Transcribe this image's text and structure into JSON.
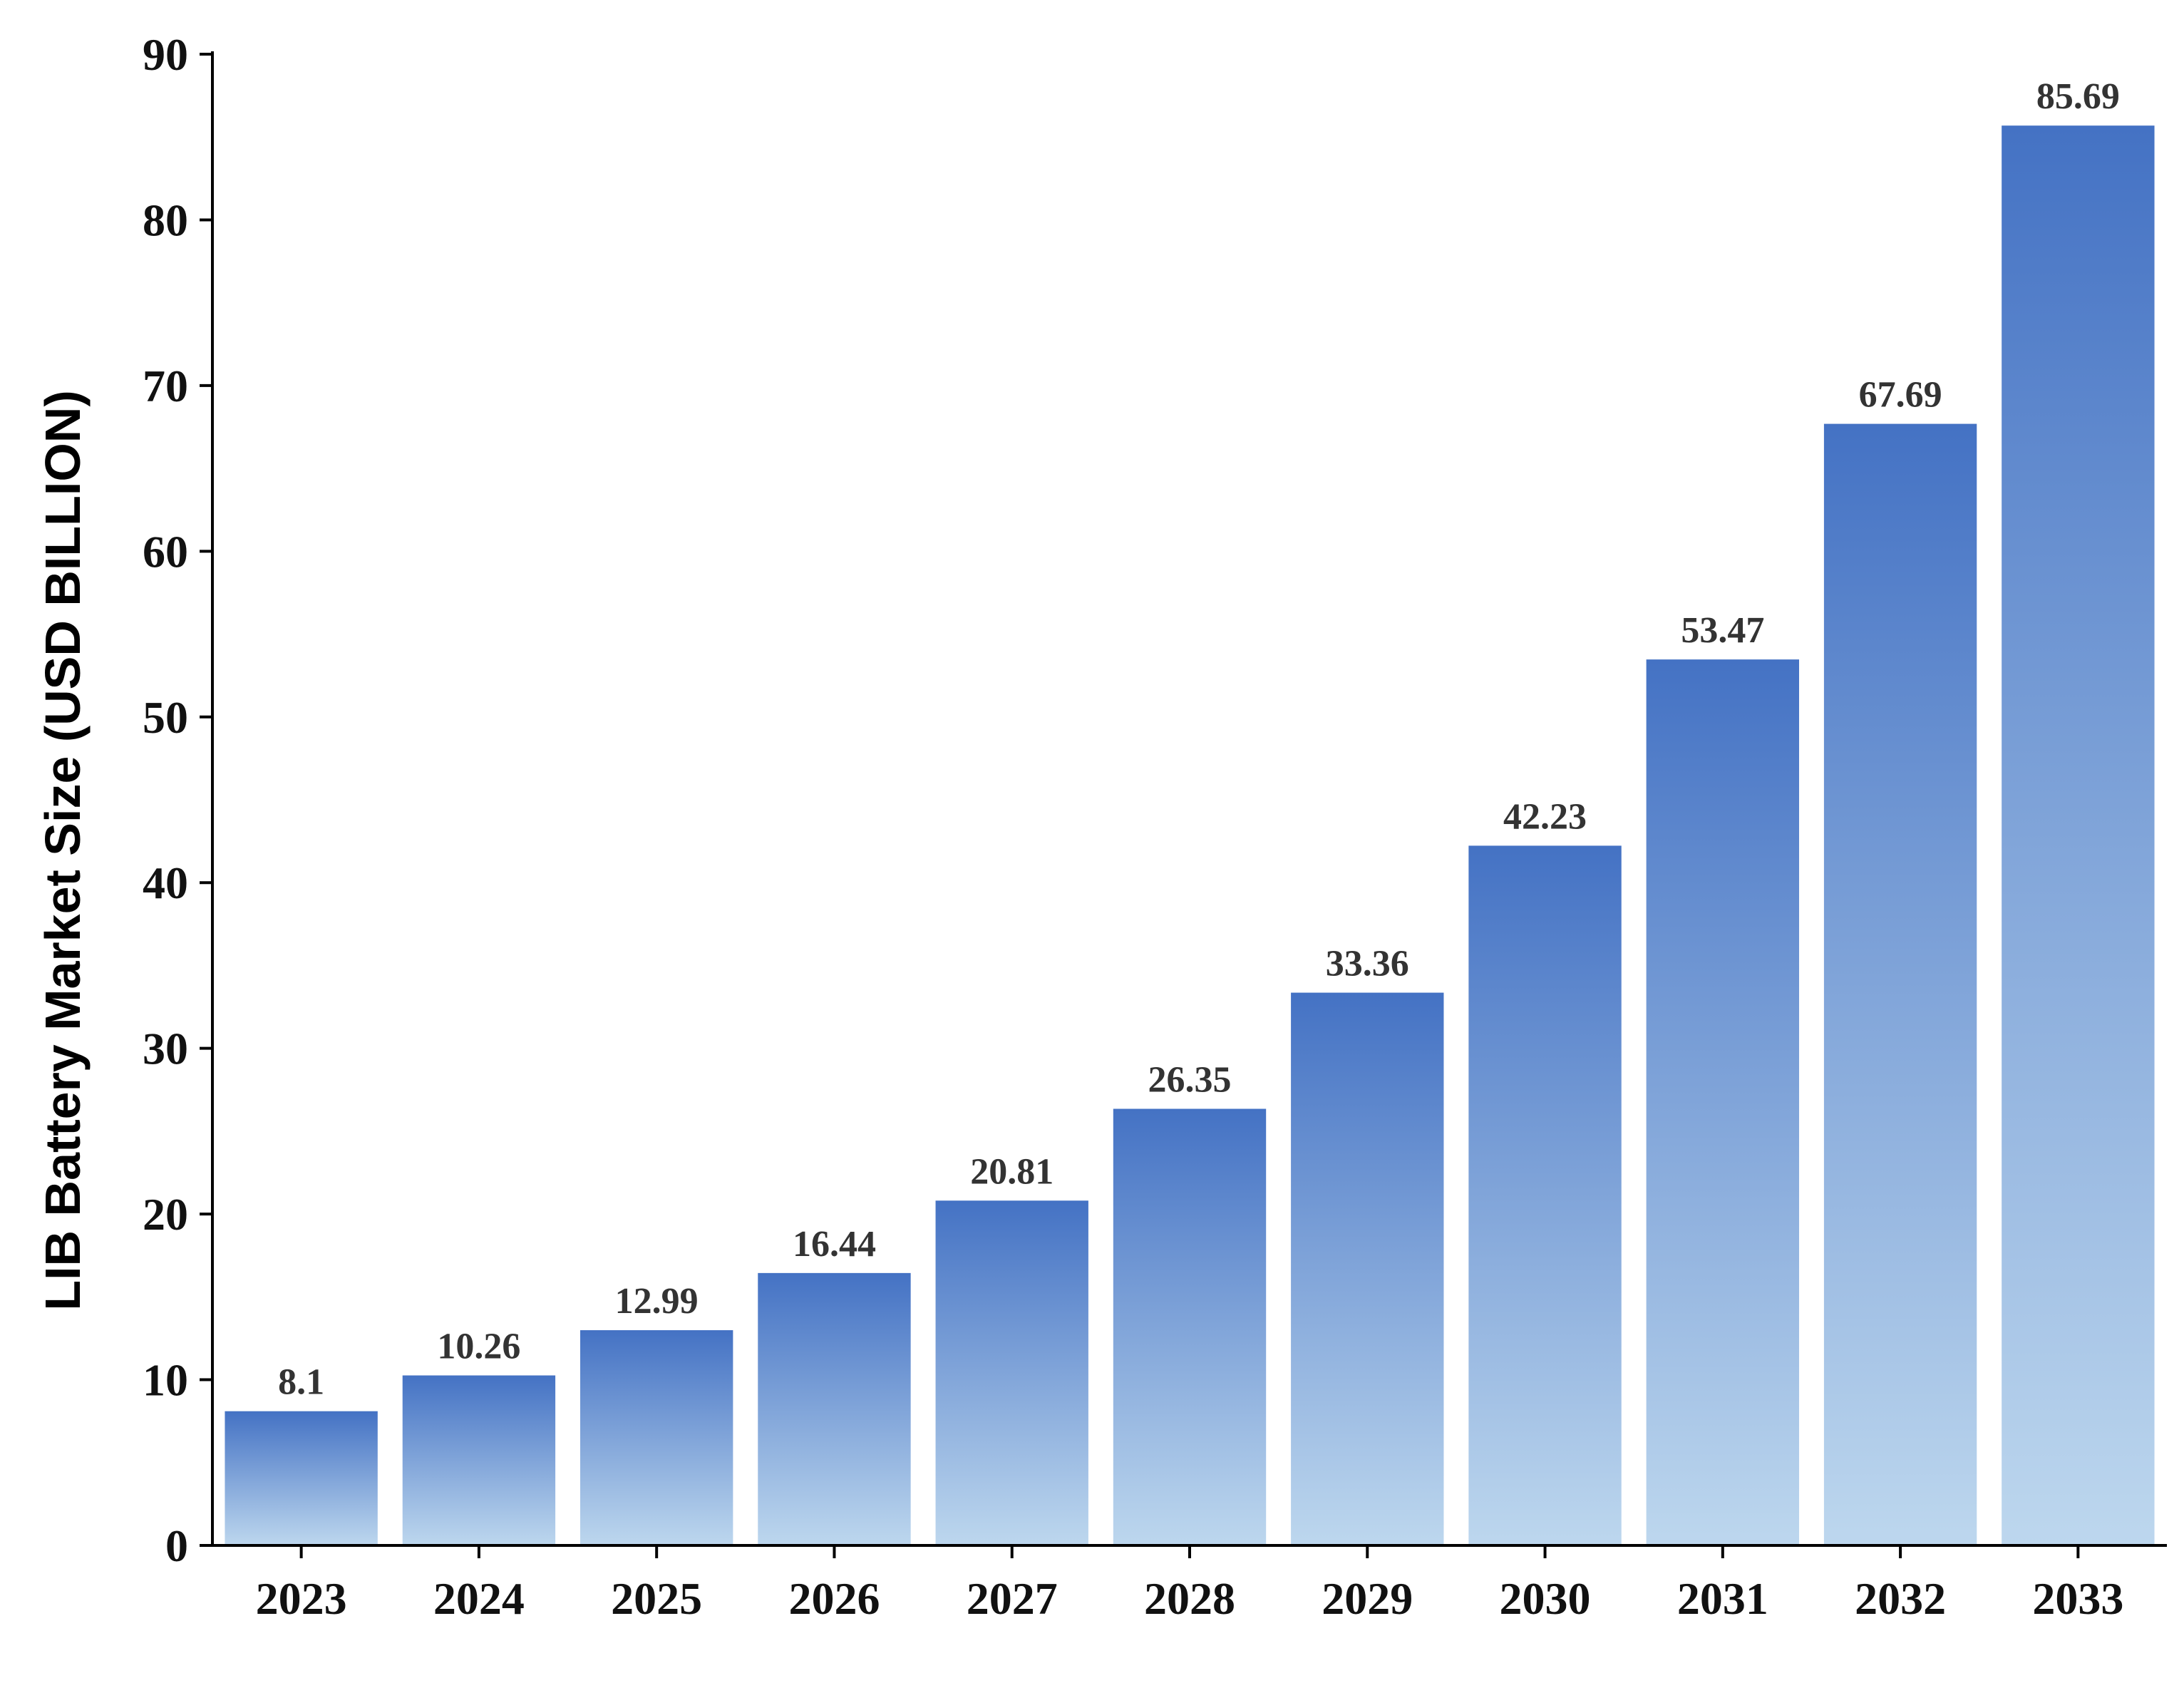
{
  "chart_data": {
    "type": "bar",
    "title": "",
    "xlabel": "",
    "ylabel": "LIB Battery Market Size (USD BILLION)",
    "categories": [
      "2023",
      "2024",
      "2025",
      "2026",
      "2027",
      "2028",
      "2029",
      "2030",
      "2031",
      "2032",
      "2033"
    ],
    "values": [
      8.1,
      10.26,
      12.99,
      16.44,
      20.81,
      26.35,
      33.36,
      42.23,
      53.47,
      67.69,
      85.69
    ],
    "value_labels": [
      "8.1",
      "10.26",
      "12.99",
      "16.44",
      "20.81",
      "26.35",
      "33.36",
      "42.23",
      "53.47",
      "67.69",
      "85.69"
    ],
    "ylim": [
      0,
      90
    ],
    "yticks": [
      0,
      10,
      20,
      30,
      40,
      50,
      60,
      70,
      80,
      90
    ],
    "grid": false,
    "legend": "none",
    "colors": {
      "bar_top": "#4472c4",
      "bar_bottom": "#bdd7ee",
      "axis": "#000000"
    }
  }
}
